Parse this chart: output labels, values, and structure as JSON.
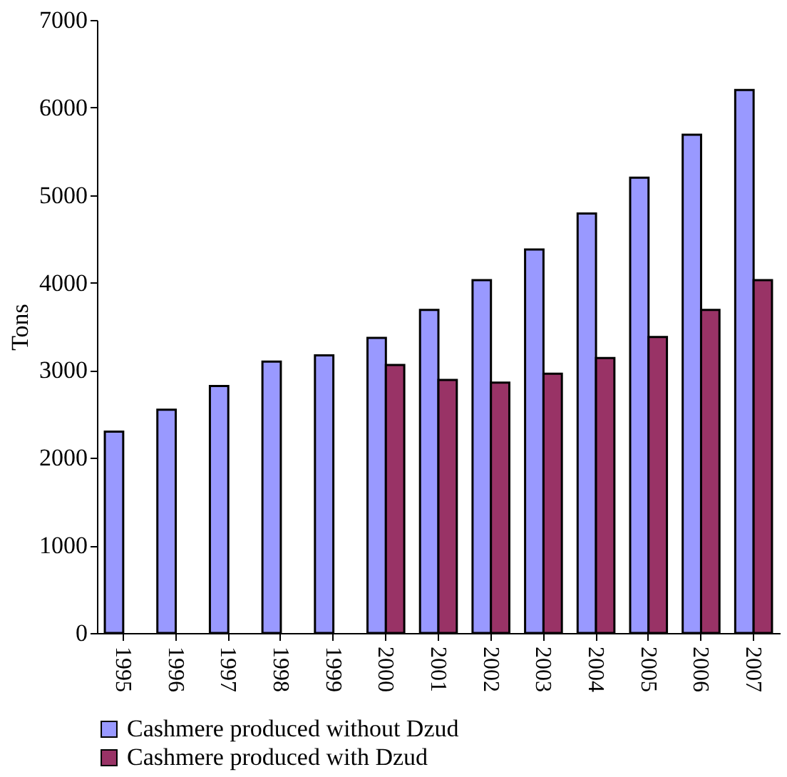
{
  "chart_data": {
    "type": "bar",
    "ylabel": "Tons",
    "categories": [
      "1995",
      "1996",
      "1997",
      "1998",
      "1999",
      "2000",
      "2001",
      "2002",
      "2003",
      "2004",
      "2005",
      "2006",
      "2007"
    ],
    "series": [
      {
        "name": "Cashmere produced without Dzud",
        "color": "#9999ff",
        "values": [
          2300,
          2550,
          2820,
          3100,
          3170,
          3370,
          3690,
          4030,
          4380,
          4790,
          5200,
          5690,
          6200
        ]
      },
      {
        "name": "Cashmere produced with Dzud",
        "color": "#993366",
        "values": [
          null,
          null,
          null,
          null,
          null,
          3060,
          2890,
          2860,
          2960,
          3140,
          3380,
          3690,
          4030
        ]
      }
    ],
    "ylim": [
      0,
      7000
    ],
    "yticks": [
      0,
      1000,
      2000,
      3000,
      4000,
      5000,
      6000,
      7000
    ],
    "grid": false,
    "legend": "bottom"
  }
}
